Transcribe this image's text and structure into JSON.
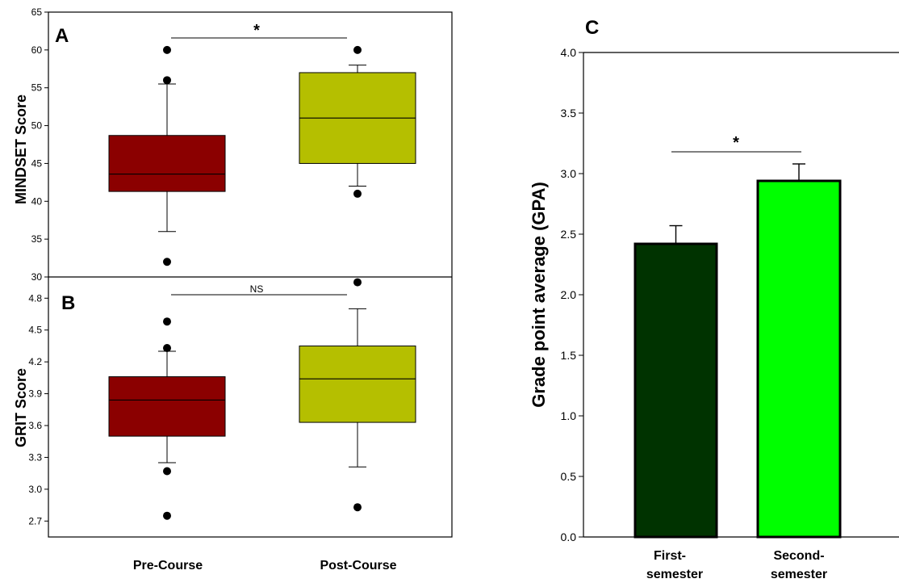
{
  "colors": {
    "pre_course": "#8b0000",
    "post_course": "#b5bf00",
    "first_semester": "#003300",
    "second_semester": "#00ff00"
  },
  "chart_data": [
    {
      "panel": "A",
      "type": "box",
      "ylabel": "MINDSET Score",
      "ylim": [
        30,
        65
      ],
      "yticks": [
        "30",
        "35",
        "40",
        "45",
        "50",
        "55",
        "60",
        "65"
      ],
      "categories": [
        "Pre-Course",
        "Post-Course"
      ],
      "boxes": [
        {
          "whisker_low": 36,
          "q1": 41.3,
          "median": 43.6,
          "q3": 48.7,
          "whisker_high": 55.5,
          "outliers": [
            60,
            56,
            32
          ]
        },
        {
          "whisker_low": 42,
          "q1": 45,
          "median": 51,
          "q3": 57,
          "whisker_high": 58,
          "outliers": [
            60,
            41
          ]
        }
      ],
      "significance": "*"
    },
    {
      "panel": "B",
      "type": "box",
      "ylabel": "GRIT Score",
      "ylim": [
        2.55,
        5.0
      ],
      "yticks": [
        "2.7",
        "3.0",
        "3.3",
        "3.6",
        "3.9",
        "4.2",
        "4.5",
        "4.8"
      ],
      "categories": [
        "Pre-Course",
        "Post-Course"
      ],
      "boxes": [
        {
          "whisker_low": 3.25,
          "q1": 3.5,
          "median": 3.84,
          "q3": 4.06,
          "whisker_high": 4.3,
          "outliers": [
            4.58,
            4.33,
            3.17,
            2.75
          ]
        },
        {
          "whisker_low": 3.21,
          "q1": 3.63,
          "median": 4.04,
          "q3": 4.35,
          "whisker_high": 4.7,
          "outliers": [
            4.95,
            2.83
          ]
        }
      ],
      "significance": "NS"
    },
    {
      "panel": "C",
      "type": "bar",
      "ylabel": "Grade point average (GPA)",
      "ylim": [
        0,
        4.0
      ],
      "yticks": [
        "0.0",
        "0.5",
        "1.0",
        "1.5",
        "2.0",
        "2.5",
        "3.0",
        "3.5",
        "4.0"
      ],
      "categories": [
        {
          "line1": "First-",
          "line2": "semester"
        },
        {
          "line1": "Second-",
          "line2": "semester"
        }
      ],
      "values": [
        2.42,
        2.94
      ],
      "errors": [
        0.15,
        0.14
      ],
      "significance": "*"
    }
  ]
}
